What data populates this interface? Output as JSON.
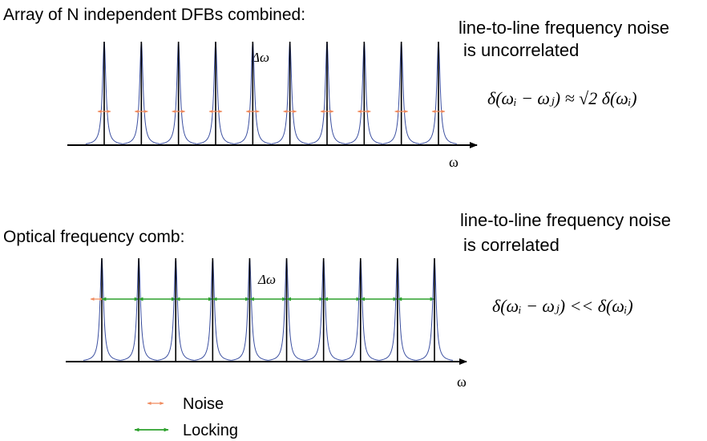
{
  "panel_top": {
    "title": "Array of N independent DFBs combined:",
    "delta_label": "Δω",
    "axis_label": "ω",
    "note_line1": "line-to-line frequency noise",
    "note_line2": "is uncorrelated",
    "formula": "δ(ωᵢ − ωⱼ) ≈ √2 δ(ωᵢ)",
    "peak_count": 10
  },
  "panel_bottom": {
    "title": "Optical frequency comb:",
    "delta_label": "Δω",
    "axis_label": "ω",
    "note_line1": "line-to-line frequency noise",
    "note_line2": "is correlated",
    "formula": "δ(ωᵢ − ωⱼ) << δ(ωᵢ)",
    "peak_count": 10
  },
  "legend": {
    "noise_label": "Noise",
    "locking_label": "Locking"
  },
  "colors": {
    "noise": "#f08a5d",
    "locking": "#2ca02c",
    "lorentzian": "#3b4fa0",
    "axis": "#000000"
  }
}
